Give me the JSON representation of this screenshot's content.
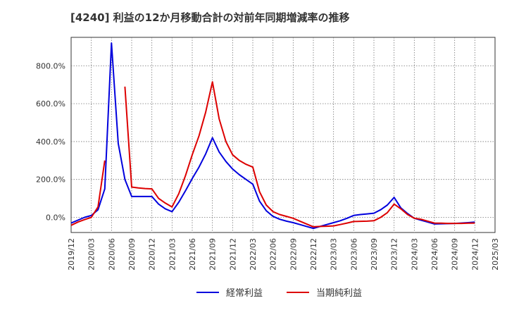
{
  "chart_data": {
    "type": "line",
    "title": "[4240]  利益の12か月移動合計の対前年同期増減率の推移",
    "xlabel": "",
    "ylabel": "",
    "x_ticks": [
      "2019/12",
      "2020/03",
      "2020/06",
      "2020/09",
      "2020/12",
      "2021/03",
      "2021/06",
      "2021/09",
      "2021/12",
      "2022/03",
      "2022/06",
      "2022/09",
      "2022/12",
      "2023/03",
      "2023/06",
      "2023/09",
      "2023/12",
      "2024/03",
      "2024/06",
      "2024/09",
      "2024/12",
      "2025/03"
    ],
    "y_ticks": [
      "0.0%",
      "200.0%",
      "400.0%",
      "600.0%",
      "800.0%"
    ],
    "y_tick_values": [
      0,
      200,
      400,
      600,
      800
    ],
    "ylim": [
      -80,
      950
    ],
    "grid": true,
    "legend_position": "bottom-center",
    "series": [
      {
        "name": "経常利益",
        "color": "#0000dd",
        "points": [
          [
            "2019/12",
            -30
          ],
          [
            "2020/01",
            -15
          ],
          [
            "2020/02",
            0
          ],
          [
            "2020/03",
            10
          ],
          [
            "2020/04",
            40
          ],
          [
            "2020/05",
            150
          ],
          [
            "2020/06",
            920
          ],
          [
            "2020/07",
            390
          ],
          [
            "2020/08",
            200
          ],
          [
            "2020/09",
            110
          ],
          [
            "2020/10",
            110
          ],
          [
            "2020/11",
            110
          ],
          [
            "2020/12",
            110
          ],
          [
            "2021/01",
            70
          ],
          [
            "2021/02",
            45
          ],
          [
            "2021/03",
            30
          ],
          [
            "2021/04",
            80
          ],
          [
            "2021/05",
            140
          ],
          [
            "2021/06",
            205
          ],
          [
            "2021/07",
            265
          ],
          [
            "2021/08",
            335
          ],
          [
            "2021/09",
            420
          ],
          [
            "2021/10",
            345
          ],
          [
            "2021/11",
            295
          ],
          [
            "2021/12",
            255
          ],
          [
            "2022/01",
            225
          ],
          [
            "2022/02",
            200
          ],
          [
            "2022/03",
            175
          ],
          [
            "2022/04",
            85
          ],
          [
            "2022/05",
            35
          ],
          [
            "2022/06",
            5
          ],
          [
            "2022/07",
            -10
          ],
          [
            "2022/08",
            -20
          ],
          [
            "2022/09",
            -28
          ],
          [
            "2022/10",
            -38
          ],
          [
            "2022/11",
            -48
          ],
          [
            "2022/12",
            -58
          ],
          [
            "2023/01",
            -48
          ],
          [
            "2023/02",
            -38
          ],
          [
            "2023/03",
            -28
          ],
          [
            "2023/04",
            -18
          ],
          [
            "2023/05",
            -5
          ],
          [
            "2023/06",
            10
          ],
          [
            "2023/07",
            15
          ],
          [
            "2023/08",
            18
          ],
          [
            "2023/09",
            22
          ],
          [
            "2023/10",
            40
          ],
          [
            "2023/11",
            65
          ],
          [
            "2023/12",
            105
          ],
          [
            "2024/01",
            50
          ],
          [
            "2024/02",
            20
          ],
          [
            "2024/03",
            -5
          ],
          [
            "2024/04",
            -15
          ],
          [
            "2024/05",
            -25
          ],
          [
            "2024/06",
            -35
          ],
          [
            "2024/07",
            -34
          ],
          [
            "2024/08",
            -33
          ],
          [
            "2024/09",
            -32
          ],
          [
            "2024/10",
            -30
          ],
          [
            "2024/11",
            -28
          ],
          [
            "2024/12",
            -25
          ]
        ]
      },
      {
        "name": "当期純利益",
        "color": "#dd0000",
        "segments": [
          [
            [
              "2019/12",
              -42
            ],
            [
              "2020/01",
              -25
            ],
            [
              "2020/02",
              -12
            ],
            [
              "2020/03",
              0
            ],
            [
              "2020/04",
              55
            ],
            [
              "2020/05",
              300
            ]
          ],
          [
            [
              "2020/08",
              690
            ],
            [
              "2020/09",
              160
            ],
            [
              "2020/10",
              155
            ],
            [
              "2020/11",
              152
            ],
            [
              "2020/12",
              150
            ],
            [
              "2021/01",
              100
            ],
            [
              "2021/02",
              75
            ],
            [
              "2021/03",
              55
            ],
            [
              "2021/04",
              125
            ],
            [
              "2021/05",
              220
            ],
            [
              "2021/06",
              330
            ],
            [
              "2021/07",
              430
            ],
            [
              "2021/08",
              555
            ],
            [
              "2021/09",
              715
            ],
            [
              "2021/10",
              520
            ],
            [
              "2021/11",
              400
            ],
            [
              "2021/12",
              330
            ],
            [
              "2022/01",
              300
            ],
            [
              "2022/02",
              280
            ],
            [
              "2022/03",
              265
            ],
            [
              "2022/04",
              135
            ],
            [
              "2022/05",
              65
            ],
            [
              "2022/06",
              30
            ],
            [
              "2022/07",
              15
            ],
            [
              "2022/08",
              5
            ],
            [
              "2022/09",
              -5
            ],
            [
              "2022/10",
              -20
            ],
            [
              "2022/11",
              -35
            ],
            [
              "2022/12",
              -50
            ],
            [
              "2023/01",
              -48
            ],
            [
              "2023/02",
              -47
            ],
            [
              "2023/03",
              -45
            ],
            [
              "2023/04",
              -38
            ],
            [
              "2023/05",
              -30
            ],
            [
              "2023/06",
              -22
            ],
            [
              "2023/07",
              -21
            ],
            [
              "2023/08",
              -20
            ],
            [
              "2023/09",
              -18
            ],
            [
              "2023/10",
              0
            ],
            [
              "2023/11",
              25
            ],
            [
              "2023/12",
              70
            ],
            [
              "2024/01",
              45
            ],
            [
              "2024/02",
              15
            ],
            [
              "2024/03",
              -5
            ],
            [
              "2024/04",
              -10
            ],
            [
              "2024/05",
              -20
            ],
            [
              "2024/06",
              -30
            ],
            [
              "2024/07",
              -31
            ],
            [
              "2024/08",
              -32
            ],
            [
              "2024/09",
              -32
            ],
            [
              "2024/10",
              -32
            ],
            [
              "2024/11",
              -31
            ],
            [
              "2024/12",
              -30
            ]
          ]
        ]
      }
    ]
  }
}
